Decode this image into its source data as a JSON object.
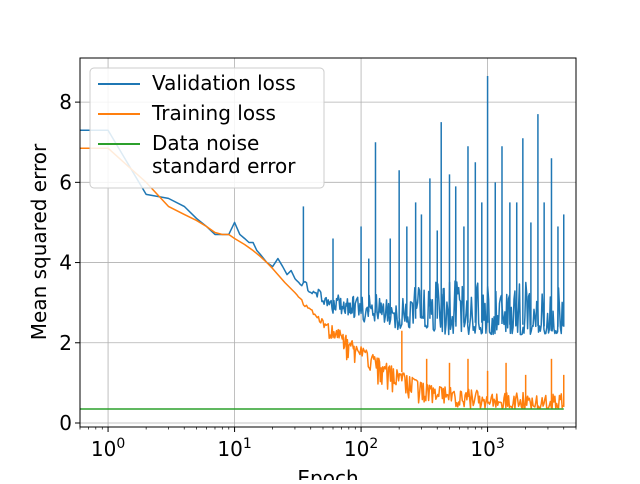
{
  "chart_data": {
    "type": "line",
    "title": "",
    "xlabel": "Epoch",
    "ylabel": "Mean squared error",
    "xscale": "log",
    "xlim": [
      0.6,
      5000
    ],
    "ylim": [
      -0.1,
      9.1
    ],
    "grid": true,
    "legend_position": "top-left",
    "x_ticks": [
      {
        "value": 1,
        "base": "10",
        "exp": "0"
      },
      {
        "value": 10,
        "base": "10",
        "exp": "1"
      },
      {
        "value": 100,
        "base": "10",
        "exp": "2"
      },
      {
        "value": 1000,
        "base": "10",
        "exp": "3"
      }
    ],
    "y_ticks": [
      0,
      2,
      4,
      6,
      8
    ],
    "series": [
      {
        "name": "Validation loss",
        "color": "#1f77b4",
        "x": [
          0,
          1,
          2,
          3,
          4,
          5,
          6,
          7,
          8,
          9,
          10,
          11,
          12,
          13,
          14,
          15,
          16,
          18,
          20,
          22,
          24,
          26,
          28,
          30,
          32,
          34,
          36,
          38,
          40,
          45,
          50,
          55,
          60,
          65,
          70,
          75,
          80,
          90,
          100,
          110,
          120,
          130,
          140,
          150,
          170,
          200,
          250,
          300,
          400,
          500,
          600,
          800,
          1000,
          1500,
          2000,
          3000,
          4000
        ],
        "y": [
          7.3,
          7.3,
          5.7,
          5.6,
          5.4,
          5.1,
          4.9,
          4.7,
          4.7,
          4.7,
          5.0,
          4.7,
          4.6,
          4.5,
          4.5,
          4.3,
          4.2,
          4.0,
          3.9,
          4.1,
          3.9,
          3.7,
          3.8,
          3.6,
          3.5,
          3.4,
          3.6,
          3.4,
          3.2,
          3.3,
          3.1,
          3.0,
          2.9,
          3.1,
          2.9,
          2.9,
          2.9,
          2.8,
          2.8,
          2.75,
          2.8,
          2.75,
          2.7,
          2.8,
          2.7,
          2.6,
          2.6,
          2.6,
          2.6,
          2.55,
          2.5,
          2.5,
          2.5,
          2.45,
          2.45,
          2.4,
          2.4
        ],
        "noise_band_y": [
          2.2,
          4.4
        ],
        "spikes": [
          {
            "x": 35,
            "y": 5.4
          },
          {
            "x": 60,
            "y": 4.6
          },
          {
            "x": 100,
            "y": 4.9
          },
          {
            "x": 115,
            "y": 4.1
          },
          {
            "x": 130,
            "y": 7.0
          },
          {
            "x": 170,
            "y": 4.6
          },
          {
            "x": 200,
            "y": 6.3
          },
          {
            "x": 230,
            "y": 4.9
          },
          {
            "x": 270,
            "y": 5.5
          },
          {
            "x": 300,
            "y": 5.2
          },
          {
            "x": 350,
            "y": 6.1
          },
          {
            "x": 400,
            "y": 4.8
          },
          {
            "x": 430,
            "y": 7.5
          },
          {
            "x": 500,
            "y": 6.2
          },
          {
            "x": 560,
            "y": 5.9
          },
          {
            "x": 650,
            "y": 4.9
          },
          {
            "x": 700,
            "y": 6.9
          },
          {
            "x": 800,
            "y": 6.5
          },
          {
            "x": 900,
            "y": 5.5
          },
          {
            "x": 1000,
            "y": 8.65
          },
          {
            "x": 1150,
            "y": 6.0
          },
          {
            "x": 1300,
            "y": 6.9
          },
          {
            "x": 1500,
            "y": 5.5
          },
          {
            "x": 1700,
            "y": 5.5
          },
          {
            "x": 1900,
            "y": 7.1
          },
          {
            "x": 2200,
            "y": 5.0
          },
          {
            "x": 2500,
            "y": 7.7
          },
          {
            "x": 2800,
            "y": 5.5
          },
          {
            "x": 3200,
            "y": 6.6
          },
          {
            "x": 3600,
            "y": 4.9
          },
          {
            "x": 4000,
            "y": 5.2
          }
        ]
      },
      {
        "name": "Training loss",
        "color": "#ff7f0e",
        "x": [
          0,
          1,
          2,
          3,
          4,
          5,
          6,
          7,
          8,
          9,
          10,
          12,
          14,
          16,
          18,
          20,
          25,
          30,
          35,
          40,
          50,
          60,
          70,
          80,
          90,
          100,
          120,
          140,
          160,
          180,
          200,
          250,
          300,
          400,
          500,
          600,
          800,
          1000,
          1500,
          2000,
          3000,
          4000
        ],
        "y": [
          6.85,
          6.85,
          6.0,
          5.4,
          5.2,
          5.05,
          4.9,
          4.75,
          4.7,
          4.7,
          4.6,
          4.45,
          4.3,
          4.15,
          4.0,
          3.85,
          3.5,
          3.25,
          3.05,
          2.85,
          2.6,
          2.45,
          2.3,
          2.15,
          2.0,
          1.9,
          1.75,
          1.6,
          1.5,
          1.4,
          1.3,
          1.15,
          1.0,
          0.85,
          0.75,
          0.7,
          0.6,
          0.55,
          0.5,
          0.45,
          0.4,
          0.4
        ],
        "noise_band_y": [
          0.35,
          1.0
        ],
        "spikes": [
          {
            "x": 210,
            "y": 2.3
          },
          {
            "x": 330,
            "y": 1.6
          },
          {
            "x": 500,
            "y": 1.5
          },
          {
            "x": 700,
            "y": 1.6
          },
          {
            "x": 1000,
            "y": 1.3
          },
          {
            "x": 1400,
            "y": 1.5
          },
          {
            "x": 2000,
            "y": 1.2
          },
          {
            "x": 3200,
            "y": 1.6
          },
          {
            "x": 4000,
            "y": 1.2
          }
        ]
      },
      {
        "name": "Data noise\n standard error",
        "color": "#2ca02c",
        "x": [
          0,
          4000
        ],
        "y": [
          0.35,
          0.35
        ]
      }
    ]
  }
}
